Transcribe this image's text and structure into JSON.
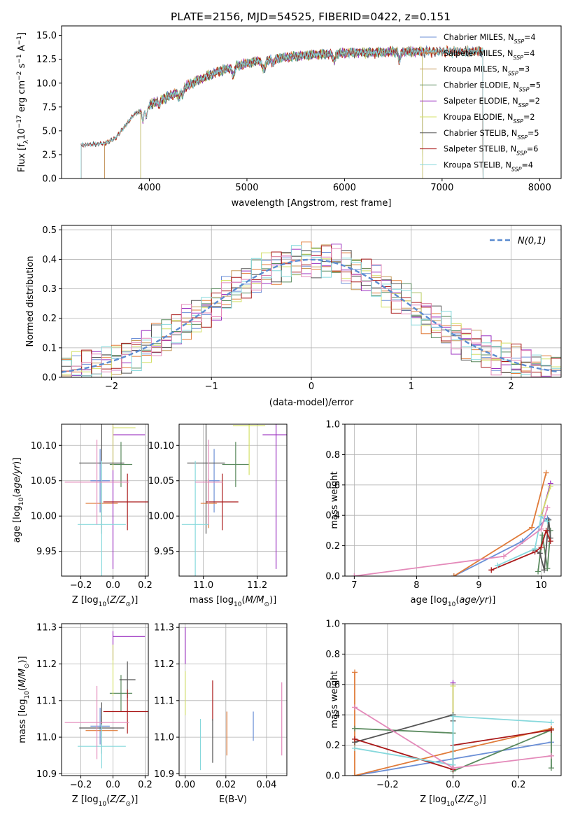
{
  "figure_title": "PLATE=2156, MJD=54525, FIBERID=0422, z=0.151",
  "colors": {
    "Chabrier MILES": "#6b8fd6",
    "Salpeter MILES": "#e07b39",
    "Kroupa MILES": "#c59a5a",
    "Chabrier ELODIE": "#5a8a5e",
    "Salpeter ELODIE": "#9b30c0",
    "Kroupa ELODIE": "#d4e06a",
    "Chabrier STELIB": "#555555",
    "Salpeter STELIB": "#aa1a1a",
    "Kroupa STELIB": "#86d8dc",
    "pink": "#e48aba"
  },
  "chart_data": [
    {
      "id": "spectrum",
      "type": "line",
      "title": "PLATE=2156, MJD=54525, FIBERID=0422, z=0.151",
      "xlabel": "wavelength [Angstrom, rest frame]",
      "ylabel": "Flux [f_λ 10^-17 erg cm^-2 s^-1 A^-1]",
      "xlim": [
        3100,
        8220
      ],
      "ylim": [
        0,
        16
      ],
      "xticks": [
        4000,
        5000,
        6000,
        7000,
        8000
      ],
      "yticks": [
        0.0,
        2.5,
        5.0,
        7.5,
        10.0,
        12.5,
        15.0
      ],
      "grid": false,
      "legend_position": "top-right",
      "legend": [
        "Chabrier MILES, N_SSP=4",
        "Salpeter MILES, N_SSP=4",
        "Kroupa MILES, N_SSP=3",
        "Chabrier ELODIE, N_SSP=5",
        "Salpeter ELODIE, N_SSP=2",
        "Kroupa ELODIE, N_SSP=2",
        "Chabrier STELIB, N_SSP=5",
        "Salpeter STELIB, N_SSP=6",
        "Kroupa STELIB, N_SSP=4"
      ],
      "series_names": [
        "Chabrier MILES",
        "Salpeter MILES",
        "Kroupa MILES",
        "Chabrier ELODIE",
        "Salpeter ELODIE",
        "Kroupa ELODIE",
        "Chabrier STELIB",
        "Salpeter STELIB",
        "Kroupa STELIB"
      ],
      "continuum": {
        "x": [
          3300,
          3450,
          3550,
          3650,
          3750,
          3850,
          3950,
          4050,
          4200,
          4350,
          4500,
          4700,
          4900,
          5100,
          5300,
          5500,
          5700,
          5900,
          6100,
          6300,
          6500,
          6700,
          6900,
          7100,
          7300,
          7420
        ],
        "y": [
          3.5,
          3.6,
          3.7,
          4.2,
          5.5,
          6.8,
          7.2,
          8.0,
          8.6,
          9.5,
          10.3,
          11.2,
          11.8,
          12.3,
          12.6,
          12.8,
          13.0,
          13.1,
          13.2,
          13.2,
          13.3,
          13.3,
          13.3,
          13.3,
          13.3,
          13.4
        ]
      },
      "wavelength_ranges": {
        "Chabrier MILES": [
          3540,
          7420
        ],
        "Salpeter MILES": [
          3540,
          7420
        ],
        "Kroupa MILES": [
          3540,
          7420
        ],
        "Chabrier ELODIE": [
          3910,
          6800
        ],
        "Salpeter ELODIE": [
          3910,
          6800
        ],
        "Kroupa ELODIE": [
          3910,
          6800
        ],
        "Chabrier STELIB": [
          3300,
          7420
        ],
        "Salpeter STELIB": [
          3300,
          7420
        ],
        "Kroupa STELIB": [
          3300,
          7420
        ]
      }
    },
    {
      "id": "residuals",
      "type": "histogram",
      "xlabel": "(data-model)/error",
      "ylabel": "Normed distribution",
      "xlim": [
        -2.5,
        2.5
      ],
      "ylim": [
        0,
        0.515
      ],
      "xticks": [
        -2,
        -1,
        0,
        1,
        2
      ],
      "yticks": [
        0.0,
        0.1,
        0.2,
        0.3,
        0.4,
        0.5
      ],
      "grid": true,
      "legend": [
        "N(0,1)"
      ],
      "legend_position": "top-right",
      "reference": {
        "name": "N(0,1)",
        "mean": 0,
        "sigma": 1
      },
      "bin_width": 0.1
    },
    {
      "id": "age-vs-Z",
      "type": "errorbar",
      "xlabel": "Z [log10(Z/Z_sun)]",
      "ylabel": "age [log10(age/yr)]",
      "xlim": [
        -0.32,
        0.22
      ],
      "ylim": [
        9.915,
        10.13
      ],
      "xticks": [
        -0.2,
        0.0,
        0.2
      ],
      "yticks": [
        9.95,
        10.0,
        10.05,
        10.1
      ],
      "grid": true,
      "points": [
        {
          "series": "Chabrier MILES",
          "x": -0.08,
          "xerr": 0.06,
          "y": 10.05,
          "yerr": 0.045
        },
        {
          "series": "Salpeter MILES",
          "x": -0.07,
          "xerr": 0.1,
          "y": 10.018,
          "yerr": 0.035
        },
        {
          "series": "Chabrier ELODIE",
          "x": 0.05,
          "xerr": 0.07,
          "y": 10.073,
          "yerr": 0.032
        },
        {
          "series": "Salpeter ELODIE",
          "x": 0.0,
          "xerr": 0.0,
          "y": 10.115,
          "yerr": 0.19
        },
        {
          "series": "Salpeter ELODIE",
          "x": 0.1,
          "xerr": 0.1,
          "y": 10.115,
          "yerr": 0.0
        },
        {
          "series": "Kroupa ELODIE",
          "x": 0.07,
          "xerr": 0.07,
          "y": 10.125,
          "yerr": 0.0
        },
        {
          "series": "Kroupa ELODIE",
          "x": 0.0,
          "xerr": 0.0,
          "y": 10.125,
          "yerr": 0.06
        },
        {
          "series": "Chabrier STELIB",
          "x": -0.07,
          "xerr": 0.14,
          "y": 10.075,
          "yerr": 0.1
        },
        {
          "series": "Salpeter STELIB",
          "x": 0.09,
          "xerr": 0.15,
          "y": 10.02,
          "yerr": 0.04
        },
        {
          "series": "Kroupa STELIB",
          "x": -0.07,
          "xerr": 0.15,
          "y": 9.988,
          "yerr": 0.09
        },
        {
          "series": "pink",
          "x": -0.1,
          "xerr": 0.2,
          "y": 10.048,
          "yerr": 0.06
        }
      ]
    },
    {
      "id": "age-vs-mass",
      "type": "errorbar",
      "xlabel": "mass [log10(M/M_sun)]",
      "ylabel": "",
      "xlim": [
        10.91,
        11.31
      ],
      "ylim": [
        9.915,
        10.13
      ],
      "xticks": [
        11.0,
        11.2
      ],
      "yticks": [
        9.95,
        10.0,
        10.05,
        10.1
      ],
      "grid": true,
      "points": [
        {
          "series": "Chabrier MILES",
          "x": 11.04,
          "xerr": 0.02,
          "y": 10.05,
          "yerr": 0.045
        },
        {
          "series": "Salpeter MILES",
          "x": 11.02,
          "xerr": 0.03,
          "y": 10.018,
          "yerr": 0.035
        },
        {
          "series": "Chabrier ELODIE",
          "x": 11.12,
          "xerr": 0.05,
          "y": 10.073,
          "yerr": 0.032
        },
        {
          "series": "Salpeter ELODIE",
          "x": 11.27,
          "xerr": 0.05,
          "y": 10.115,
          "yerr": 0.19
        },
        {
          "series": "Kroupa ELODIE",
          "x": 11.17,
          "xerr": 0.06,
          "y": 10.128,
          "yerr": 0.07
        },
        {
          "series": "Chabrier STELIB",
          "x": 11.01,
          "xerr": 0.07,
          "y": 10.075,
          "yerr": 0.1
        },
        {
          "series": "Salpeter STELIB",
          "x": 11.07,
          "xerr": 0.06,
          "y": 10.02,
          "yerr": 0.04
        },
        {
          "series": "Kroupa STELIB",
          "x": 10.97,
          "xerr": 0.05,
          "y": 9.988,
          "yerr": 0.09
        },
        {
          "series": "pink",
          "x": 11.02,
          "xerr": 0.05,
          "y": 10.048,
          "yerr": 0.06
        }
      ]
    },
    {
      "id": "weight-vs-age",
      "type": "line",
      "xlabel": "age (log10(age/yr))",
      "ylabel": "mass weight",
      "xlim": [
        6.85,
        10.32
      ],
      "ylim": [
        0,
        1.0
      ],
      "xticks": [
        7,
        8,
        9,
        10
      ],
      "yticks": [
        0.0,
        0.2,
        0.4,
        0.6,
        0.8,
        1.0
      ],
      "grid": true,
      "series": [
        {
          "name": "Chabrier MILES",
          "x": [
            8.6,
            9.7,
            10.1
          ],
          "y": [
            0.0,
            0.23,
            0.38
          ]
        },
        {
          "name": "Salpeter MILES",
          "x": [
            8.6,
            9.85,
            10.08
          ],
          "y": [
            0.0,
            0.32,
            0.68
          ]
        },
        {
          "name": "Chabrier ELODIE",
          "x": [
            9.95,
            10.02,
            10.1,
            10.15
          ],
          "y": [
            0.03,
            0.27,
            0.05,
            0.3
          ]
        },
        {
          "name": "Salpeter ELODIE",
          "x": [
            10.0,
            10.15
          ],
          "y": [
            0.39,
            0.61
          ]
        },
        {
          "name": "Kroupa ELODIE",
          "x": [
            10.0,
            10.15
          ],
          "y": [
            0.4,
            0.59
          ]
        },
        {
          "name": "Chabrier STELIB",
          "x": [
            9.9,
            9.98,
            10.05,
            10.12,
            10.15
          ],
          "y": [
            0.17,
            0.15,
            0.04,
            0.37,
            0.25
          ]
        },
        {
          "name": "Salpeter STELIB",
          "x": [
            9.2,
            9.9,
            10.0,
            10.08,
            10.15
          ],
          "y": [
            0.04,
            0.16,
            0.19,
            0.3,
            0.23
          ]
        },
        {
          "name": "Kroupa STELIB",
          "x": [
            9.3,
            9.9,
            10.0,
            10.1
          ],
          "y": [
            0.07,
            0.18,
            0.39,
            0.36
          ]
        },
        {
          "name": "pink",
          "x": [
            7.0,
            9.4,
            10.0,
            10.1
          ],
          "y": [
            0.0,
            0.13,
            0.31,
            0.45
          ]
        }
      ]
    },
    {
      "id": "mass-vs-Z",
      "type": "errorbar",
      "xlabel": "Z [log10(Z/Z_sun)]",
      "ylabel": "mass [log10(M/M_sun)]",
      "xlim": [
        -0.32,
        0.22
      ],
      "ylim": [
        10.895,
        11.31
      ],
      "xticks": [
        -0.2,
        0.0,
        0.2
      ],
      "yticks": [
        10.9,
        11.0,
        11.1,
        11.2,
        11.3
      ],
      "grid": true,
      "points": [
        {
          "series": "Chabrier MILES",
          "x": -0.08,
          "xerr": 0.06,
          "y": 11.03,
          "yerr": 0.05
        },
        {
          "series": "Salpeter MILES",
          "x": -0.07,
          "xerr": 0.1,
          "y": 11.018,
          "yerr": 0.04
        },
        {
          "series": "Chabrier ELODIE",
          "x": 0.05,
          "xerr": 0.07,
          "y": 11.12,
          "yerr": 0.05
        },
        {
          "series": "Salpeter ELODIE",
          "x": 0.1,
          "xerr": 0.1,
          "y": 11.275,
          "yerr": 0.0
        },
        {
          "series": "Salpeter ELODIE",
          "x": 0.0,
          "xerr": 0.0,
          "y": 11.25,
          "yerr": 0.04
        },
        {
          "series": "Kroupa ELODIE",
          "x": 0.0,
          "xerr": 0.0,
          "y": 11.183,
          "yerr": 0.07
        },
        {
          "series": "Chabrier STELIB",
          "x": 0.09,
          "xerr": 0.05,
          "y": 11.157,
          "yerr": 0.05
        },
        {
          "series": "Chabrier STELIB",
          "x": -0.07,
          "xerr": 0.14,
          "y": 11.025,
          "yerr": 0.07
        },
        {
          "series": "Salpeter STELIB",
          "x": 0.09,
          "xerr": 0.15,
          "y": 11.07,
          "yerr": 0.06
        },
        {
          "series": "Kroupa STELIB",
          "x": -0.07,
          "xerr": 0.15,
          "y": 10.975,
          "yerr": 0.06
        },
        {
          "series": "pink",
          "x": -0.1,
          "xerr": 0.2,
          "y": 11.04,
          "yerr": 0.1
        }
      ]
    },
    {
      "id": "mass-vs-EBV",
      "type": "errorbar",
      "xlabel": "E(B-V)",
      "ylabel": "",
      "xlim": [
        -0.003,
        0.05
      ],
      "ylim": [
        10.895,
        11.31
      ],
      "xticks": [
        0.0,
        0.02,
        0.04
      ],
      "yticks": [
        10.9,
        11.0,
        11.1,
        11.2,
        11.3
      ],
      "grid": true,
      "points": [
        {
          "series": "Salpeter ELODIE",
          "x": 0.0,
          "y": 11.25,
          "yerr": 0.05
        },
        {
          "series": "Kroupa ELODIE",
          "x": 0.0,
          "y": 11.12,
          "yerr": 0.06
        },
        {
          "series": "Kroupa STELIB",
          "x": 0.0075,
          "y": 10.98,
          "yerr": 0.07
        },
        {
          "series": "Salpeter STELIB",
          "x": 0.0135,
          "y": 11.1,
          "yerr": 0.055
        },
        {
          "series": "Chabrier STELIB",
          "x": 0.0135,
          "y": 10.99,
          "yerr": 0.06
        },
        {
          "series": "Salpeter MILES",
          "x": 0.0205,
          "y": 11.01,
          "yerr": 0.06
        },
        {
          "series": "Chabrier MILES",
          "x": 0.0335,
          "y": 11.03,
          "yerr": 0.04
        },
        {
          "series": "pink",
          "x": 0.0475,
          "y": 11.05,
          "yerr": 0.1
        }
      ]
    },
    {
      "id": "weight-vs-Z",
      "type": "line",
      "xlabel": "Z [log10(Z/Z_sun)]",
      "ylabel": "mass weight",
      "xlim": [
        -0.33,
        0.33
      ],
      "ylim": [
        0,
        1.0
      ],
      "xticks": [
        -0.2,
        0.0,
        0.2
      ],
      "yticks": [
        0.0,
        0.2,
        0.4,
        0.6,
        0.8,
        1.0
      ],
      "grid": true,
      "series": [
        {
          "name": "Chabrier MILES",
          "x": [
            -0.3,
            0.0,
            0.3
          ],
          "y": [
            0.0,
            0.11,
            0.22
          ]
        },
        {
          "name": "Salpeter MILES",
          "x": [
            -0.3,
            -0.3,
            0.0,
            0.3
          ],
          "y": [
            0.68,
            0.0,
            0.16,
            0.31
          ]
        },
        {
          "name": "Chabrier ELODIE",
          "x": [
            -0.3,
            0.0,
            0.0,
            0.3,
            0.3
          ],
          "y": [
            0.31,
            0.28,
            0.03,
            0.3,
            0.05
          ]
        },
        {
          "name": "Salpeter ELODIE",
          "x": [
            0.0,
            0.0
          ],
          "y": [
            0.61,
            0.4
          ]
        },
        {
          "name": "Kroupa ELODIE",
          "x": [
            0.0,
            0.0
          ],
          "y": [
            0.59,
            0.4
          ]
        },
        {
          "name": "Chabrier STELIB",
          "x": [
            -0.3,
            0.0,
            0.0
          ],
          "y": [
            0.22,
            0.4,
            0.36
          ]
        },
        {
          "name": "Salpeter STELIB",
          "x": [
            -0.3,
            0.0,
            0.0,
            0.3
          ],
          "y": [
            0.24,
            0.04,
            0.2,
            0.3
          ]
        },
        {
          "name": "Kroupa STELIB",
          "x": [
            -0.3,
            0.0,
            0.0,
            0.3
          ],
          "y": [
            0.18,
            0.07,
            0.39,
            0.35
          ]
        },
        {
          "name": "pink",
          "x": [
            -0.3,
            0.0,
            0.3
          ],
          "y": [
            0.45,
            0.05,
            0.13
          ]
        }
      ]
    }
  ]
}
